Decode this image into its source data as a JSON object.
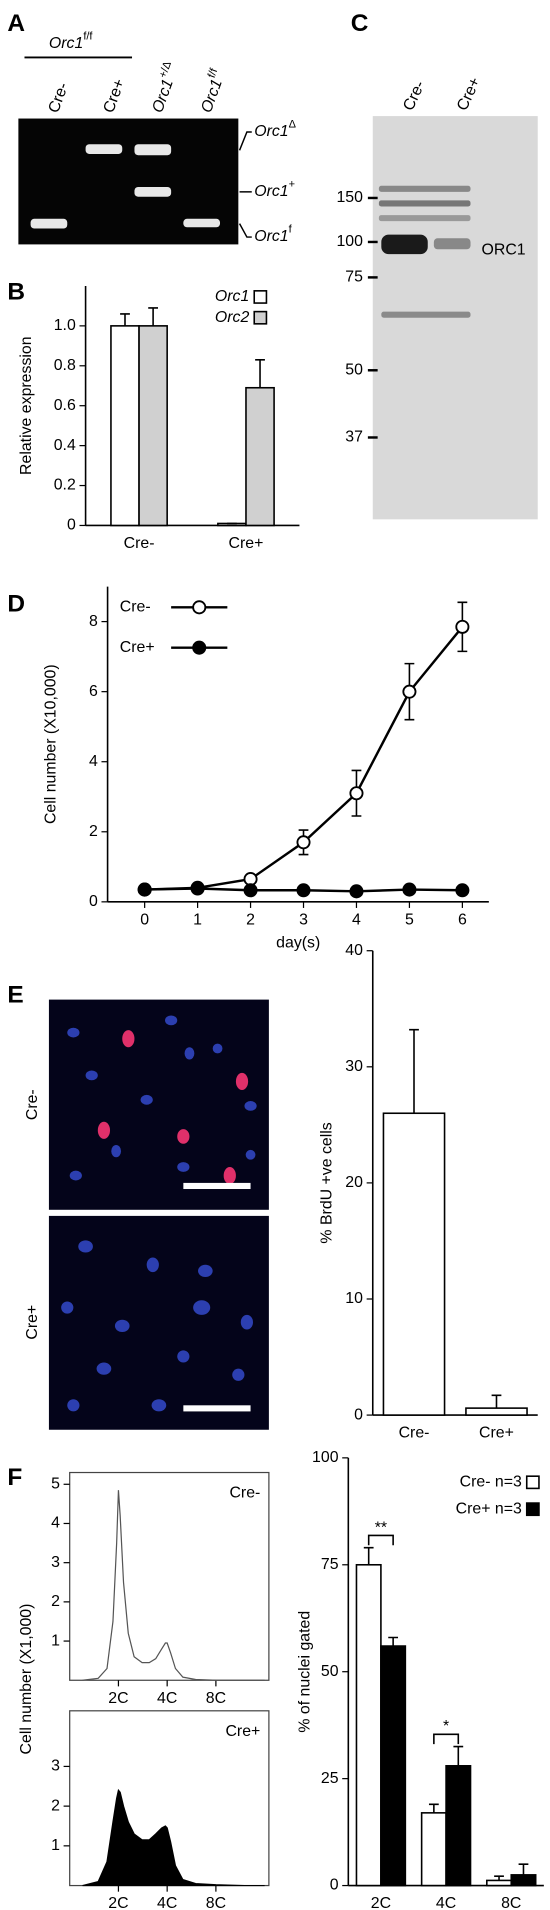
{
  "panel_a": {
    "label": "A",
    "group": {
      "base": "Orc1",
      "sup": "f/f"
    },
    "lanes": [
      "Cre-",
      "Cre+",
      {
        "base": "Orc1",
        "sup": "+/Δ"
      },
      {
        "base": "Orc1",
        "sup": "f/f"
      }
    ],
    "bands": [
      {
        "base": "Orc1",
        "sup": "Δ"
      },
      {
        "base": "Orc1",
        "sup": "+"
      },
      {
        "base": "Orc1",
        "sup": "f"
      }
    ]
  },
  "panel_c": {
    "label": "C",
    "lanes": [
      "Cre-",
      "Cre+"
    ],
    "markers": [
      150,
      100,
      75,
      50,
      37
    ],
    "band_label": "ORC1"
  },
  "panel_e": {
    "label": "E",
    "rows": [
      "Cre-",
      "Cre+"
    ]
  },
  "chart_data": [
    {
      "type": "bar",
      "panel_label": "B",
      "y_label": "Relative expression",
      "categories": [
        "Cre-",
        "Cre+"
      ],
      "series": [
        {
          "name": "Orc1",
          "color": "#ffffff",
          "values": [
            1.0,
            0.01
          ],
          "errors": [
            0.06,
            0
          ]
        },
        {
          "name": "Orc2",
          "color": "#d0d0d0",
          "values": [
            1.0,
            0.69
          ],
          "errors": [
            0.09,
            0.14
          ]
        }
      ],
      "ylim": [
        0,
        1.2
      ],
      "yticks": [
        0,
        0.2,
        0.4,
        0.6,
        0.8,
        {
          "value": 1.0,
          "label": "1.0"
        }
      ],
      "legend": "top-right"
    },
    {
      "type": "line",
      "panel_label": "D",
      "y_label": "Cell number (X10,000)",
      "x_label": "day(s)",
      "x": [
        0,
        1,
        2,
        3,
        4,
        5,
        6
      ],
      "series": [
        {
          "name": "Cre-",
          "color": "#ffffff",
          "values": [
            0.35,
            0.4,
            0.65,
            1.7,
            3.1,
            6.0,
            7.85
          ],
          "errors": [
            0.05,
            0.05,
            0.08,
            0.35,
            0.65,
            0.8,
            0.7
          ]
        },
        {
          "name": "Cre+",
          "color": "#000000",
          "values": [
            0.35,
            0.38,
            0.33,
            0.33,
            0.3,
            0.35,
            0.33
          ]
        }
      ],
      "xlim": [
        -0.7,
        6.5
      ],
      "xticks": [
        0,
        1,
        2,
        3,
        4,
        5,
        6
      ],
      "ylim": [
        0,
        9
      ],
      "yticks": [
        0,
        2,
        4,
        6,
        8
      ],
      "legend": "top-left"
    },
    {
      "type": "bar",
      "y_label": "% BrdU +ve cells",
      "categories": [
        "Cre-",
        "Cre+"
      ],
      "series": [
        {
          "color": "#ffffff",
          "values": [
            26,
            0.6
          ],
          "errors": [
            7.2,
            1.1
          ]
        }
      ],
      "ylim": [
        0,
        40
      ],
      "yticks": [
        0,
        10,
        20,
        30,
        40
      ]
    },
    {
      "type": "area",
      "panel_label": "F",
      "y_label": "Cell number (X1,000)",
      "annotation": "Cre-",
      "log_x": true,
      "filled": false,
      "x": [
        1.2,
        1.5,
        1.7,
        1.85,
        1.95,
        2.0,
        2.05,
        2.15,
        2.3,
        2.5,
        2.8,
        3.1,
        3.4,
        3.7,
        3.9,
        4.0,
        4.2,
        4.5,
        5,
        6,
        8,
        12,
        16
      ],
      "series": [
        {
          "color": "#555555",
          "values": [
            0,
            0.05,
            0.3,
            1.5,
            3.5,
            4.85,
            4.2,
            2.5,
            1.2,
            0.6,
            0.45,
            0.45,
            0.55,
            0.8,
            0.95,
            0.95,
            0.7,
            0.3,
            0.08,
            0.02,
            0,
            0,
            0
          ]
        }
      ],
      "xlim": [
        1,
        17
      ],
      "xticks": [
        {
          "value": 2,
          "label": "2C"
        },
        {
          "value": 4,
          "label": "4C"
        },
        {
          "value": 8,
          "label": "8C"
        }
      ],
      "ylim": [
        0,
        5.3
      ],
      "yticks": [
        1,
        2,
        3,
        4,
        5
      ]
    },
    {
      "type": "area",
      "annotation": "Cre+",
      "log_x": true,
      "filled": true,
      "x": [
        1.2,
        1.5,
        1.7,
        1.85,
        1.95,
        2.0,
        2.05,
        2.15,
        2.3,
        2.5,
        2.8,
        3.1,
        3.4,
        3.7,
        3.9,
        4.0,
        4.2,
        4.5,
        5,
        6,
        8,
        12,
        16
      ],
      "series": [
        {
          "color": "#000000",
          "values": [
            0,
            0.1,
            0.6,
            1.6,
            2.2,
            2.4,
            2.35,
            2.0,
            1.6,
            1.3,
            1.15,
            1.15,
            1.3,
            1.45,
            1.5,
            1.45,
            1.1,
            0.5,
            0.15,
            0.05,
            0.02,
            0,
            0
          ]
        }
      ],
      "xlim": [
        1,
        17
      ],
      "xticks": [
        {
          "value": 2,
          "label": "2C"
        },
        {
          "value": 4,
          "label": "4C"
        },
        {
          "value": 8,
          "label": "8C"
        }
      ],
      "ylim": [
        0,
        4.4
      ],
      "yticks": [
        1,
        2,
        3
      ]
    },
    {
      "type": "bar",
      "y_label": "% of nuclei gated",
      "categories": [
        "2C",
        "4C",
        "8C"
      ],
      "series": [
        {
          "name": "Cre- n=3",
          "color": "#ffffff",
          "values": [
            75,
            17,
            1.2
          ],
          "errors": [
            4,
            2,
            1.0
          ]
        },
        {
          "name": "Cre+ n=3",
          "color": "#000000",
          "values": [
            56,
            28,
            2.5
          ],
          "errors": [
            2,
            4.5,
            2.5
          ]
        }
      ],
      "ylim": [
        0,
        100
      ],
      "yticks": [
        0,
        25,
        50,
        75,
        100
      ],
      "annotations": [
        "**",
        "*"
      ],
      "legend": "top-right"
    }
  ]
}
